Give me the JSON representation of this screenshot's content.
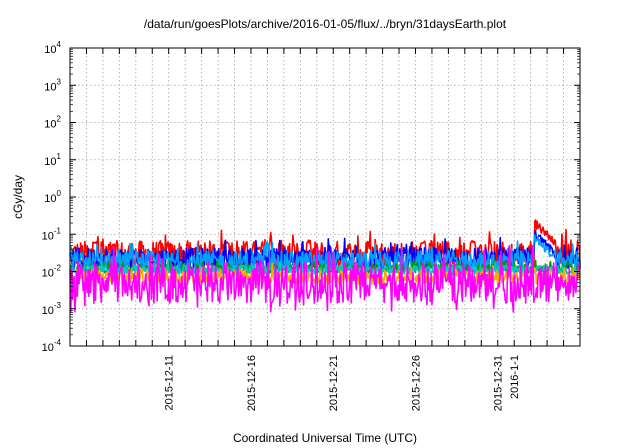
{
  "chart_data": {
    "type": "line",
    "title": "/data/run/goesPlots/archive/2016-01-05/flux/../bryn/31daysEarth.plot",
    "xlabel": "Coordinated Universal Time (UTC)",
    "ylabel": "cGy/day",
    "y_scale": "log",
    "ylim": [
      0.0001,
      10000
    ],
    "y_ticks": [
      {
        "value": 0.0001,
        "base": "10",
        "exp": "-4"
      },
      {
        "value": 0.001,
        "base": "10",
        "exp": "-3"
      },
      {
        "value": 0.01,
        "base": "10",
        "exp": "-2"
      },
      {
        "value": 0.1,
        "base": "10",
        "exp": "-1"
      },
      {
        "value": 1,
        "base": "10",
        "exp": "0"
      },
      {
        "value": 10,
        "base": "10",
        "exp": "1"
      },
      {
        "value": 100,
        "base": "10",
        "exp": "2"
      },
      {
        "value": 1000,
        "base": "10",
        "exp": "3"
      },
      {
        "value": 10000,
        "base": "10",
        "exp": "4"
      }
    ],
    "xlim": [
      "2015-12-05",
      "2016-01-05"
    ],
    "x_tick_labels": [
      {
        "date": "2015-12-11",
        "label": "2015-12-11"
      },
      {
        "date": "2015-12-16",
        "label": "2015-12-16"
      },
      {
        "date": "2015-12-21",
        "label": "2015-12-21"
      },
      {
        "date": "2015-12-26",
        "label": "2015-12-26"
      },
      {
        "date": "2015-12-31",
        "label": "2015-12-31"
      },
      {
        "date": "2016-01-01",
        "label": "2016-1-1"
      }
    ],
    "grid": true,
    "series": [
      {
        "color": "#ff0000",
        "baseline": 0.028,
        "spread": 0.38,
        "spike_dates": [
          "2015-12-06",
          "2015-12-14",
          "2015-12-19",
          "2015-12-26",
          "2015-12-29"
        ],
        "event": {
          "from": "2016-01-02",
          "to": "2016-01-03",
          "peak": 0.2
        }
      },
      {
        "color": "#0000ff",
        "baseline": 0.022,
        "spread": 0.3,
        "spike_dates": [],
        "event": {
          "from": "2016-01-02",
          "to": "2016-01-03",
          "peak": 0.1
        }
      },
      {
        "color": "#00a0ff",
        "baseline": 0.018,
        "spread": 0.3,
        "spike_dates": [],
        "event": {
          "from": "2016-01-02",
          "to": "2016-01-03",
          "peak": 0.08
        }
      },
      {
        "color": "#009900",
        "baseline": 0.012,
        "spread": 0.12,
        "spike_dates": [],
        "event": null
      },
      {
        "color": "#00c8c8",
        "baseline": 0.011,
        "spread": 0.12,
        "spike_dates": [],
        "event": null
      },
      {
        "color": "#ffa500",
        "baseline": 0.007,
        "spread": 0.2,
        "spike_dates": [],
        "event": null
      },
      {
        "color": "#ff00ff",
        "baseline": 0.005,
        "spread": 0.55,
        "spike_dates": [],
        "event": null
      }
    ]
  }
}
